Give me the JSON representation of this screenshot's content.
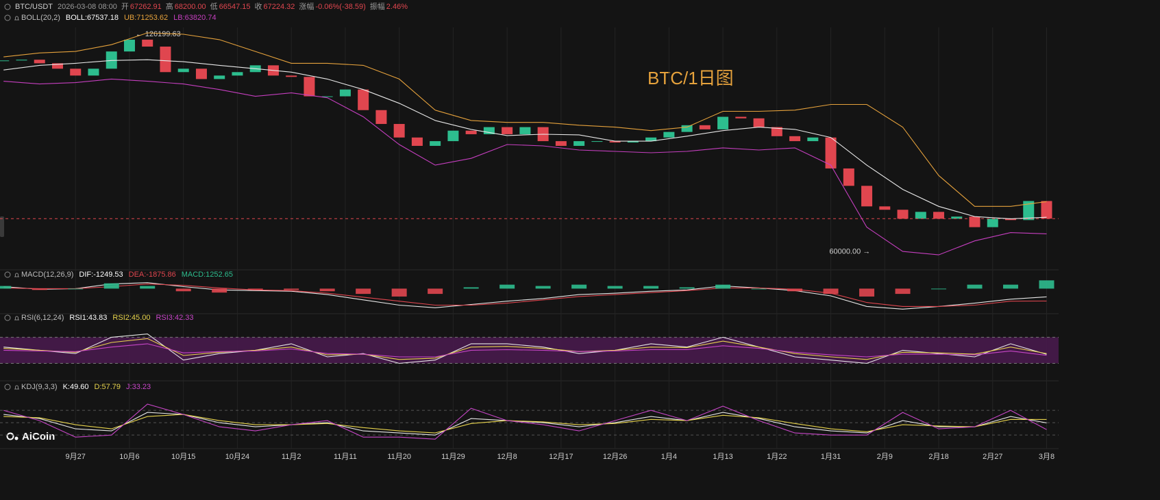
{
  "header": {
    "symbol": "BTC/USDT",
    "time": "2026-03-08 08:00",
    "fields": [
      {
        "label": "开",
        "value": "67262.91"
      },
      {
        "label": "高",
        "value": "68200.00"
      },
      {
        "label": "低",
        "value": "66547.15"
      },
      {
        "label": "收",
        "value": "67224.32"
      },
      {
        "label": "涨幅",
        "value": "-0.06%(-38.59)"
      },
      {
        "label": "振幅",
        "value": "2.46%"
      }
    ]
  },
  "watermark": "BTC/1日图",
  "logo": "AiCoin",
  "chart_data": [
    {
      "type": "candlestick",
      "up_color": "#2dbd8e",
      "down_color": "#e0464f",
      "log_scale": true,
      "xlim": [
        -0.6,
        176
      ],
      "ylim": [
        56700,
        129200
      ],
      "xticks": [
        {
          "value": 12,
          "label": "9月27"
        },
        {
          "value": 21,
          "label": "10月6"
        },
        {
          "value": 30,
          "label": "10月15"
        },
        {
          "value": 39,
          "label": "10月24"
        },
        {
          "value": 48,
          "label": "11月2"
        },
        {
          "value": 57,
          "label": "11月11"
        },
        {
          "value": 66,
          "label": "11月20"
        },
        {
          "value": 75,
          "label": "11月29"
        },
        {
          "value": 84,
          "label": "12月8"
        },
        {
          "value": 93,
          "label": "12月17"
        },
        {
          "value": 102,
          "label": "12月26"
        },
        {
          "value": 111,
          "label": "1月4"
        },
        {
          "value": 120,
          "label": "1月13"
        },
        {
          "value": 129,
          "label": "1月22"
        },
        {
          "value": 138,
          "label": "1月31"
        },
        {
          "value": 147,
          "label": "2月9"
        },
        {
          "value": 156,
          "label": "2月18"
        },
        {
          "value": 165,
          "label": "2月27"
        },
        {
          "value": 174,
          "label": "3月8"
        }
      ],
      "x": [
        0,
        3,
        6,
        9,
        12,
        15,
        18,
        21,
        24,
        27,
        30,
        33,
        36,
        39,
        42,
        45,
        48,
        51,
        54,
        57,
        60,
        63,
        66,
        69,
        72,
        75,
        78,
        81,
        84,
        87,
        90,
        93,
        96,
        99,
        102,
        105,
        108,
        111,
        114,
        117,
        120,
        123,
        126,
        129,
        132,
        135,
        138,
        141,
        144,
        147,
        150,
        153,
        156,
        159,
        162,
        165,
        168,
        171,
        174
      ],
      "values": [
        115400,
        115700,
        114300,
        112200,
        109600,
        112200,
        119000,
        123900,
        121000,
        110900,
        112200,
        108300,
        109600,
        110900,
        113500,
        109600,
        109100,
        102100,
        102100,
        104500,
        97400,
        92900,
        88700,
        86200,
        87600,
        90800,
        89700,
        91900,
        89700,
        91900,
        87600,
        86200,
        87600,
        87600,
        87200,
        87600,
        88700,
        90400,
        92500,
        91200,
        95200,
        94700,
        91900,
        89100,
        87600,
        88700,
        79800,
        75200,
        70100,
        69300,
        67200,
        68800,
        67200,
        67700,
        65300,
        67200,
        66900,
        71400,
        67224.32
      ],
      "annotations": [
        {
          "x": 22,
          "value": 126199.63,
          "label": "← 126199.63"
        },
        {
          "x": 144.6,
          "value": 60000,
          "label": "60000.00 →"
        }
      ]
    },
    {
      "type": "line",
      "title": "BOLL(20,2)",
      "log_scale": true,
      "ylim": [
        56700,
        129200
      ],
      "x": [
        0,
        6,
        12,
        18,
        24,
        30,
        36,
        42,
        48,
        54,
        60,
        66,
        72,
        78,
        84,
        90,
        96,
        102,
        108,
        114,
        120,
        126,
        132,
        138,
        144,
        150,
        156,
        162,
        168,
        174
      ],
      "series": [
        {
          "name": "BOLL:67537.18",
          "color": "#e8e8e8",
          "values": [
            111700,
            113500,
            114300,
            115400,
            115700,
            114900,
            113500,
            112200,
            110900,
            108300,
            104500,
            99700,
            94000,
            91200,
            89300,
            89700,
            89500,
            87600,
            87600,
            89100,
            90800,
            91900,
            91200,
            88700,
            80700,
            74300,
            70100,
            67700,
            67200,
            67537.18
          ]
        },
        {
          "name": "UB:71253.62",
          "color": "#e6a23c",
          "values": [
            116800,
            118400,
            119000,
            121800,
            126800,
            126200,
            123900,
            119000,
            114300,
            114300,
            113500,
            108300,
            97400,
            94000,
            93400,
            93400,
            92500,
            91900,
            90800,
            91900,
            97000,
            97000,
            97400,
            99300,
            99300,
            91900,
            77900,
            70100,
            70100,
            71253.62
          ]
        },
        {
          "name": "LB:63820.74",
          "color": "#c63fc0",
          "values": [
            107500,
            106500,
            107000,
            108300,
            107500,
            106500,
            104500,
            102100,
            103300,
            101600,
            95200,
            86600,
            80700,
            82600,
            86600,
            86200,
            85000,
            84600,
            84200,
            84600,
            85600,
            85000,
            85600,
            80700,
            65300,
            60100,
            59400,
            62300,
            64100,
            63820.74
          ]
        }
      ]
    },
    {
      "type": "line",
      "title": "MACD(12,26,9)",
      "ylim": [
        -3800,
        1700
      ],
      "x": [
        0,
        6,
        12,
        18,
        24,
        30,
        36,
        42,
        48,
        54,
        60,
        66,
        72,
        78,
        84,
        90,
        96,
        102,
        108,
        114,
        120,
        126,
        132,
        138,
        144,
        150,
        156,
        162,
        168,
        174
      ],
      "series": [
        {
          "name": "DIF:-1249.53",
          "color": "#e8e8e8",
          "values": [
            300,
            -100,
            0,
            700,
            900,
            300,
            -200,
            -300,
            -400,
            -900,
            -1700,
            -2500,
            -2900,
            -2400,
            -1900,
            -1500,
            -900,
            -700,
            -400,
            -200,
            400,
            100,
            -300,
            -1100,
            -2700,
            -3100,
            -2700,
            -2200,
            -1600,
            -1249.53
          ]
        },
        {
          "name": "DEA:-1875.86",
          "color": "#e0464f",
          "values": [
            100,
            0,
            0,
            300,
            700,
            500,
            100,
            -200,
            -300,
            -700,
            -1300,
            -1900,
            -2500,
            -2500,
            -2200,
            -1700,
            -1200,
            -900,
            -600,
            -300,
            100,
            100,
            -100,
            -700,
            -2100,
            -2700,
            -2700,
            -2500,
            -1900,
            -1875.86
          ]
        },
        {
          "name": "MACD:1252.65",
          "type": "bar",
          "color": "#2dbd8e",
          "negative_color": "#e0464f",
          "values": [
            400,
            -200,
            0,
            800,
            400,
            -400,
            -600,
            -200,
            -200,
            -400,
            -800,
            -1200,
            -800,
            200,
            600,
            400,
            600,
            400,
            400,
            200,
            600,
            0,
            -400,
            -800,
            -1200,
            -800,
            0,
            600,
            600,
            1252.65
          ]
        }
      ]
    },
    {
      "type": "line",
      "title": "RSI(6,12,24)",
      "ylim": [
        20,
        83
      ],
      "band": [
        30,
        70
      ],
      "band_color": "#4a1a4f",
      "x": [
        0,
        6,
        12,
        18,
        24,
        30,
        36,
        42,
        48,
        54,
        60,
        66,
        72,
        78,
        84,
        90,
        96,
        102,
        108,
        114,
        120,
        126,
        132,
        138,
        144,
        150,
        156,
        162,
        168,
        174
      ],
      "series": [
        {
          "name": "RSI1:43.83",
          "color": "#e8e8e8",
          "values": [
            55,
            50,
            45,
            70,
            75,
            35,
            45,
            50,
            60,
            40,
            45,
            30,
            35,
            60,
            60,
            55,
            45,
            50,
            60,
            55,
            70,
            55,
            40,
            35,
            30,
            50,
            45,
            40,
            60,
            43.83
          ]
        },
        {
          "name": "RSI2:45.00",
          "color": "#e8d44d",
          "values": [
            53,
            50,
            47,
            62,
            68,
            42,
            47,
            50,
            55,
            43,
            44,
            36,
            38,
            55,
            56,
            53,
            48,
            50,
            55,
            54,
            64,
            55,
            45,
            40,
            36,
            47,
            46,
            44,
            55,
            45
          ]
        },
        {
          "name": "RSI3:42.33",
          "color": "#c846c8",
          "values": [
            50,
            49,
            48,
            55,
            60,
            46,
            48,
            49,
            52,
            45,
            44,
            40,
            40,
            50,
            51,
            50,
            48,
            49,
            51,
            51,
            57,
            53,
            47,
            43,
            40,
            44,
            44,
            43,
            49,
            42.33
          ]
        }
      ]
    },
    {
      "type": "line",
      "title": "KDJ(9,3,3)",
      "ylim": [
        -8,
        120
      ],
      "ref_lines": [
        20,
        50,
        80
      ],
      "x": [
        0,
        6,
        12,
        18,
        24,
        30,
        36,
        42,
        48,
        54,
        60,
        66,
        72,
        78,
        84,
        90,
        96,
        102,
        108,
        114,
        120,
        126,
        132,
        138,
        144,
        150,
        156,
        162,
        168,
        174
      ],
      "series": [
        {
          "name": "K:49.60",
          "color": "#e8e8e8",
          "values": [
            70,
            60,
            35,
            30,
            75,
            70,
            50,
            40,
            45,
            50,
            30,
            25,
            20,
            60,
            55,
            50,
            40,
            50,
            65,
            55,
            75,
            60,
            40,
            30,
            25,
            55,
            40,
            40,
            65,
            49.6
          ]
        },
        {
          "name": "D:57.79",
          "color": "#e8d44d",
          "values": [
            65,
            62,
            45,
            35,
            65,
            70,
            55,
            45,
            45,
            48,
            38,
            30,
            25,
            48,
            55,
            52,
            45,
            48,
            58,
            55,
            68,
            62,
            48,
            35,
            28,
            45,
            42,
            40,
            58,
            57.79
          ]
        },
        {
          "name": "J:33.23",
          "color": "#c846c8",
          "values": [
            80,
            55,
            15,
            20,
            95,
            70,
            40,
            30,
            45,
            55,
            15,
            15,
            10,
            85,
            55,
            45,
            30,
            55,
            80,
            55,
            90,
            55,
            25,
            20,
            20,
            75,
            35,
            40,
            80,
            33.23
          ]
        }
      ]
    }
  ]
}
